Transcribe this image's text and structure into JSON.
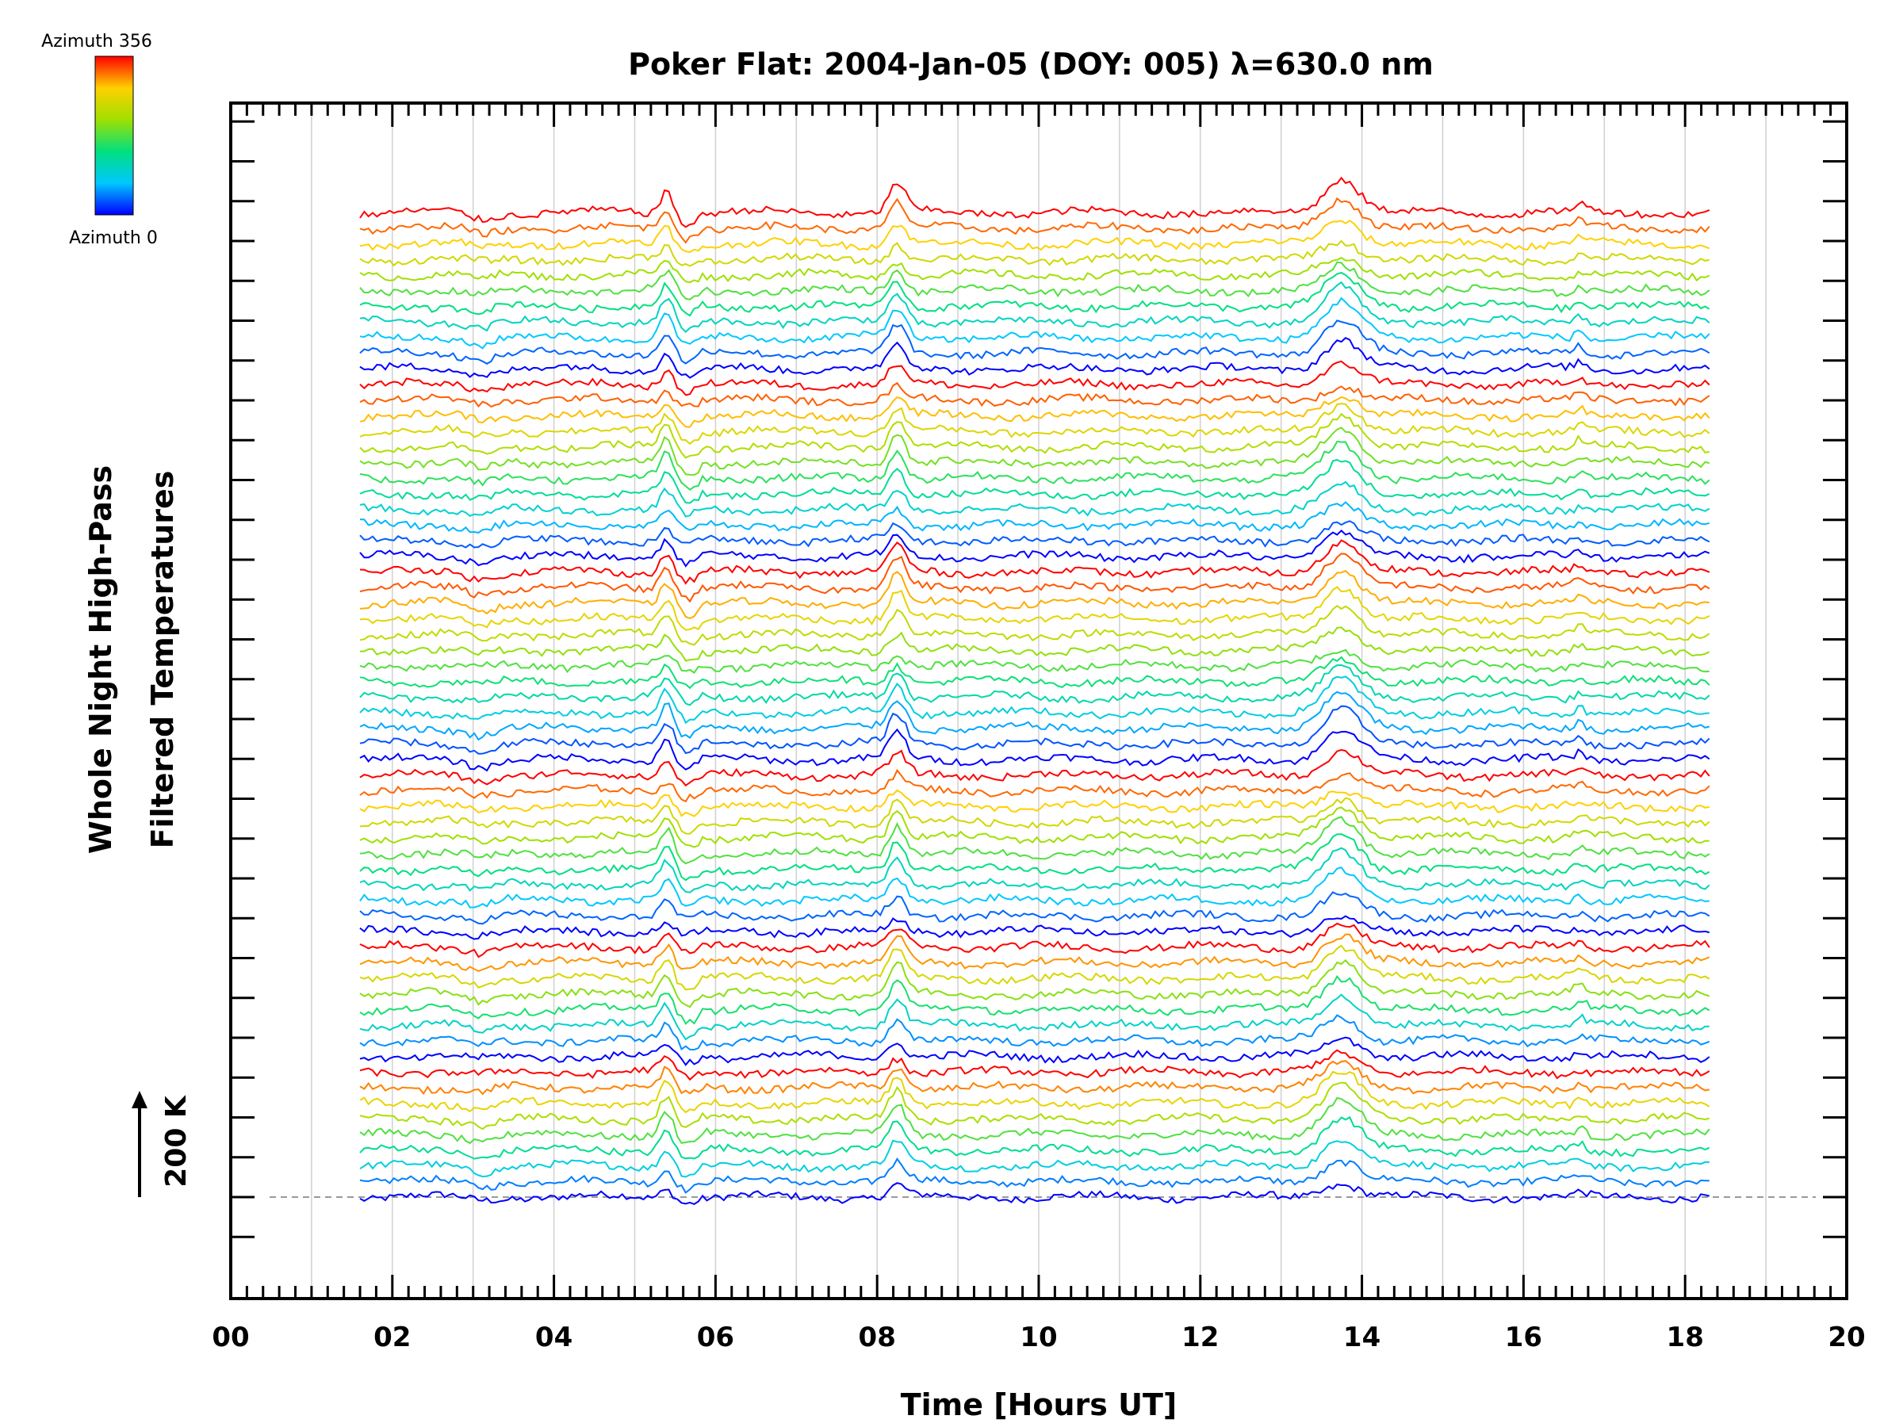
{
  "chart_data": {
    "type": "line",
    "title": "Poker Flat: 2004-Jan-05 (DOY: 005) λ=630.0 nm",
    "xlabel": "Time [Hours UT]",
    "ylabel_line1": "Whole Night High-Pass",
    "ylabel_line2": "Filtered Temperatures",
    "scale_bar_label": "200 K",
    "scale_bar_kelvin": 200,
    "xlim": [
      0,
      20
    ],
    "x_tick_labels": [
      "00",
      "02",
      "04",
      "06",
      "08",
      "10",
      "12",
      "14",
      "16",
      "18",
      "20"
    ],
    "x_tick_values": [
      0,
      2,
      4,
      6,
      8,
      10,
      12,
      14,
      16,
      18,
      20
    ],
    "time_range": [
      1.6,
      18.3
    ],
    "series_count": 64,
    "colorbar": {
      "top_label": "Azimuth 356",
      "bottom_label": "Azimuth 0",
      "range": [
        0,
        356
      ],
      "colors": [
        "#0000ff",
        "#00c8ff",
        "#00e080",
        "#a0e000",
        "#ffd000",
        "#ff0000"
      ]
    },
    "common_features": [
      {
        "time": 5.4,
        "amplitude_K": 90,
        "width_h": 0.08
      },
      {
        "time": 8.25,
        "amplitude_K": 110,
        "width_h": 0.1
      },
      {
        "time": 13.75,
        "amplitude_K": 130,
        "width_h": 0.22
      },
      {
        "time": 16.7,
        "amplitude_K": 30,
        "width_h": 0.06
      }
    ]
  }
}
